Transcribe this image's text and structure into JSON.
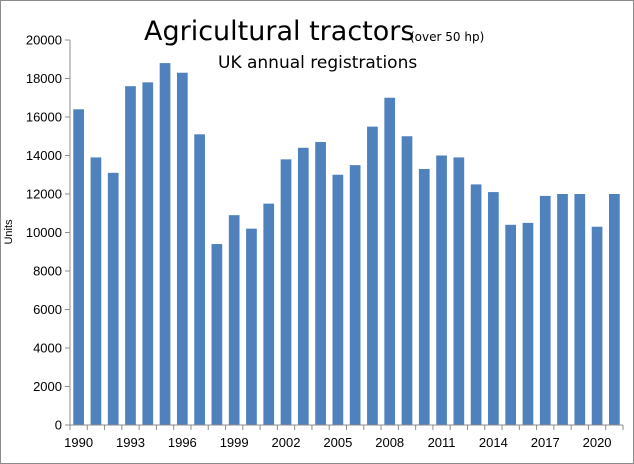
{
  "chart_data": {
    "type": "bar",
    "title": "Agricultural tractors",
    "title_note": "(over 50 hp)",
    "subtitle": "UK annual registrations",
    "ylabel": "Units",
    "xlabel": "",
    "ylim": [
      0,
      20000
    ],
    "yticks": [
      0,
      2000,
      4000,
      6000,
      8000,
      10000,
      12000,
      14000,
      16000,
      18000,
      20000
    ],
    "x_tick_labels": [
      "1990",
      "1993",
      "1996",
      "1999",
      "2002",
      "2005",
      "2008",
      "2011",
      "2014",
      "2017",
      "2020"
    ],
    "categories": [
      "1990",
      "1991",
      "1992",
      "1993",
      "1994",
      "1995",
      "1996",
      "1997",
      "1998",
      "1999",
      "2000",
      "2001",
      "2002",
      "2003",
      "2004",
      "2005",
      "2006",
      "2007",
      "2008",
      "2009",
      "2010",
      "2011",
      "2012",
      "2013",
      "2014",
      "2015",
      "2016",
      "2017",
      "2018",
      "2019",
      "2020",
      "2021"
    ],
    "values": [
      16400,
      13900,
      13100,
      17600,
      17800,
      18800,
      18300,
      15100,
      9400,
      10900,
      10200,
      11500,
      13800,
      14400,
      14700,
      13000,
      13500,
      15500,
      17000,
      15000,
      13300,
      14000,
      13900,
      12500,
      12100,
      10400,
      10500,
      11900,
      12000,
      12000,
      10300,
      12000
    ],
    "bar_color": "#4f81bd",
    "grid": false,
    "legend": "none"
  }
}
